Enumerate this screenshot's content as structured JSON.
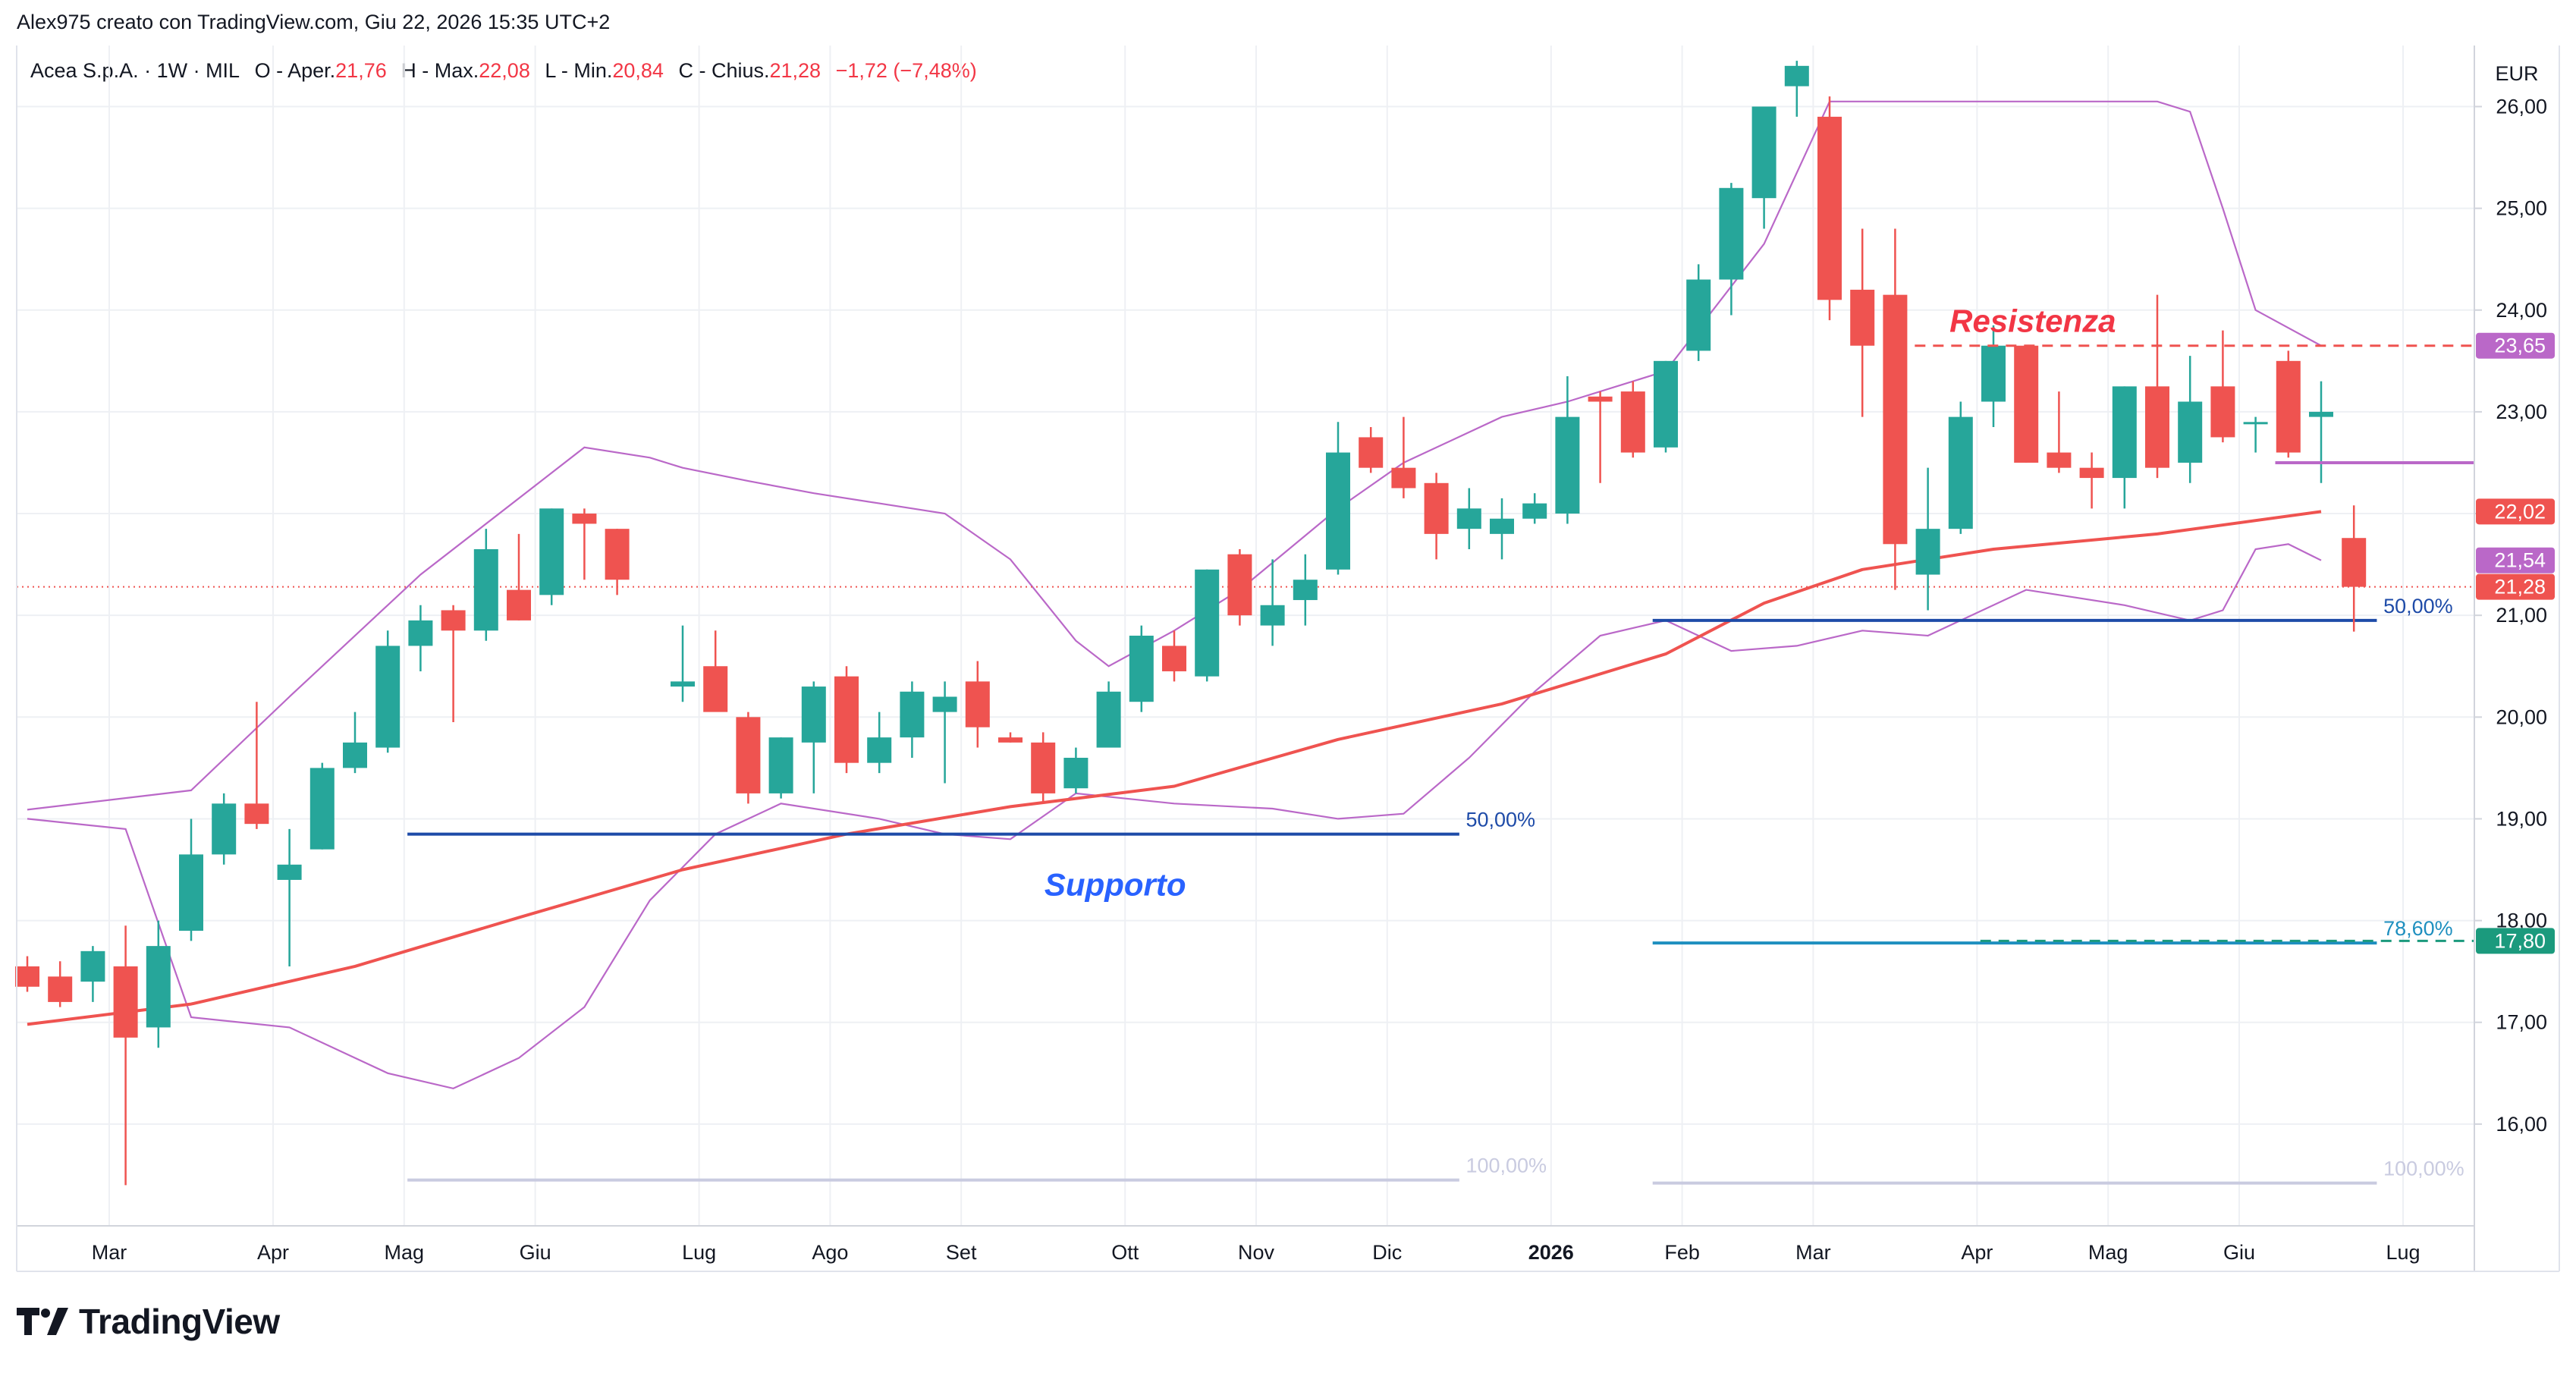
{
  "header": {
    "credit": "Alex975 creato con TradingView.com, Giu 22, 2026 15:35 UTC+2"
  },
  "legend": {
    "symbol": "Acea S.p.A. · 1W · MIL",
    "o_label": "O - Aper.",
    "o_value": "21,76",
    "h_label": "H - Max.",
    "h_value": "22,08",
    "l_label": "L - Min.",
    "l_value": "20,84",
    "c_label": "C - Chius.",
    "c_value": "21,28",
    "change": "−1,72 (−7,48%)"
  },
  "colors": {
    "up": "#26a69a",
    "down": "#ef5350",
    "ma": "#ef5350",
    "bb": "#ba68c8",
    "fib_blue": "#1e4ba8",
    "fib_cyan": "#1e8fbf",
    "fib_grey": "#c9cbe0",
    "note_blue": "#2962ff",
    "note_red": "#f23645",
    "grid": "#eef0f4"
  },
  "branding": {
    "logo_text": "TradingView",
    "logo_icon": "tradingview-logo-icon"
  },
  "chart_data": {
    "type": "candlestick",
    "currency": "EUR",
    "ylim": [
      15,
      26.6
    ],
    "y_ticks": [
      {
        "v": 16,
        "label": "16,00"
      },
      {
        "v": 17,
        "label": "17,00"
      },
      {
        "v": 18,
        "label": "18,00"
      },
      {
        "v": 19,
        "label": "19,00"
      },
      {
        "v": 20,
        "label": "20,00"
      },
      {
        "v": 21,
        "label": "21,00"
      },
      {
        "v": 22,
        "label": "22,00"
      },
      {
        "v": 23,
        "label": "23,00"
      },
      {
        "v": 24,
        "label": "24,00"
      },
      {
        "v": 25,
        "label": "25,00"
      },
      {
        "v": 26,
        "label": "26,00"
      }
    ],
    "x_ticks": [
      {
        "i": 2.5,
        "label": "Mar",
        "bold": false
      },
      {
        "i": 7.5,
        "label": "Apr",
        "bold": false
      },
      {
        "i": 11.5,
        "label": "Mag",
        "bold": false
      },
      {
        "i": 15.5,
        "label": "Giu",
        "bold": false
      },
      {
        "i": 20.5,
        "label": "Lug",
        "bold": false
      },
      {
        "i": 24.5,
        "label": "Ago",
        "bold": false
      },
      {
        "i": 28.5,
        "label": "Set",
        "bold": false
      },
      {
        "i": 33.5,
        "label": "Ott",
        "bold": false
      },
      {
        "i": 37.5,
        "label": "Nov",
        "bold": false
      },
      {
        "i": 41.5,
        "label": "Dic",
        "bold": false
      },
      {
        "i": 46.5,
        "label": "2026",
        "bold": true
      },
      {
        "i": 50.5,
        "label": "Feb",
        "bold": false
      },
      {
        "i": 54.5,
        "label": "Mar",
        "bold": false
      },
      {
        "i": 59.5,
        "label": "Apr",
        "bold": false
      },
      {
        "i": 63.5,
        "label": "Mag",
        "bold": false
      },
      {
        "i": 67.5,
        "label": "Giu",
        "bold": false
      },
      {
        "i": 72.5,
        "label": "Lug",
        "bold": false
      }
    ],
    "candles": [
      {
        "o": 17.55,
        "h": 17.65,
        "l": 17.3,
        "c": 17.35
      },
      {
        "o": 17.45,
        "h": 17.6,
        "l": 17.15,
        "c": 17.2
      },
      {
        "o": 17.4,
        "h": 17.75,
        "l": 17.2,
        "c": 17.7
      },
      {
        "o": 17.55,
        "h": 17.95,
        "l": 15.4,
        "c": 16.85
      },
      {
        "o": 16.95,
        "h": 18.0,
        "l": 16.75,
        "c": 17.75
      },
      {
        "o": 17.9,
        "h": 19.0,
        "l": 17.8,
        "c": 18.65
      },
      {
        "o": 18.65,
        "h": 19.25,
        "l": 18.55,
        "c": 19.15
      },
      {
        "o": 19.15,
        "h": 20.15,
        "l": 18.9,
        "c": 18.95
      },
      {
        "o": 18.4,
        "h": 18.9,
        "l": 17.55,
        "c": 18.55
      },
      {
        "o": 18.7,
        "h": 19.55,
        "l": 18.7,
        "c": 19.5
      },
      {
        "o": 19.5,
        "h": 20.05,
        "l": 19.45,
        "c": 19.75
      },
      {
        "o": 19.7,
        "h": 20.85,
        "l": 19.65,
        "c": 20.7
      },
      {
        "o": 20.7,
        "h": 21.1,
        "l": 20.45,
        "c": 20.95
      },
      {
        "o": 21.05,
        "h": 21.1,
        "l": 19.95,
        "c": 20.85
      },
      {
        "o": 20.85,
        "h": 21.85,
        "l": 20.75,
        "c": 21.65
      },
      {
        "o": 21.25,
        "h": 21.8,
        "l": 20.95,
        "c": 20.95
      },
      {
        "o": 21.2,
        "h": 22.05,
        "l": 21.1,
        "c": 22.05
      },
      {
        "o": 22.0,
        "h": 22.05,
        "l": 21.35,
        "c": 21.9
      },
      {
        "o": 21.85,
        "h": 21.85,
        "l": 21.2,
        "c": 21.35
      },
      {},
      {
        "o": 20.3,
        "h": 20.9,
        "l": 20.15,
        "c": 20.35
      },
      {
        "o": 20.5,
        "h": 20.85,
        "l": 20.1,
        "c": 20.05
      },
      {
        "o": 20.0,
        "h": 20.05,
        "l": 19.15,
        "c": 19.25
      },
      {
        "o": 19.25,
        "h": 19.8,
        "l": 19.2,
        "c": 19.8
      },
      {
        "o": 19.75,
        "h": 20.35,
        "l": 19.25,
        "c": 20.3
      },
      {
        "o": 20.4,
        "h": 20.5,
        "l": 19.45,
        "c": 19.55
      },
      {
        "o": 19.55,
        "h": 20.05,
        "l": 19.45,
        "c": 19.8
      },
      {
        "o": 19.8,
        "h": 20.35,
        "l": 19.6,
        "c": 20.25
      },
      {
        "o": 20.05,
        "h": 20.35,
        "l": 19.35,
        "c": 20.2
      },
      {
        "o": 20.35,
        "h": 20.55,
        "l": 19.7,
        "c": 19.9
      },
      {
        "o": 19.8,
        "h": 19.85,
        "l": 19.75,
        "c": 19.75
      },
      {
        "o": 19.75,
        "h": 19.85,
        "l": 19.15,
        "c": 19.25
      },
      {
        "o": 19.3,
        "h": 19.7,
        "l": 19.25,
        "c": 19.6
      },
      {
        "o": 19.7,
        "h": 20.35,
        "l": 19.7,
        "c": 20.25
      },
      {
        "o": 20.15,
        "h": 20.9,
        "l": 20.05,
        "c": 20.8
      },
      {
        "o": 20.7,
        "h": 20.85,
        "l": 20.35,
        "c": 20.45
      },
      {
        "o": 20.4,
        "h": 21.45,
        "l": 20.35,
        "c": 21.45
      },
      {
        "o": 21.6,
        "h": 21.65,
        "l": 20.9,
        "c": 21.0
      },
      {
        "o": 20.9,
        "h": 21.55,
        "l": 20.7,
        "c": 21.1
      },
      {
        "o": 21.15,
        "h": 21.6,
        "l": 20.9,
        "c": 21.35
      },
      {
        "o": 21.45,
        "h": 22.9,
        "l": 21.4,
        "c": 22.6
      },
      {
        "o": 22.75,
        "h": 22.85,
        "l": 22.4,
        "c": 22.45
      },
      {
        "o": 22.45,
        "h": 22.95,
        "l": 22.15,
        "c": 22.25
      },
      {
        "o": 22.3,
        "h": 22.4,
        "l": 21.55,
        "c": 21.8
      },
      {
        "o": 21.85,
        "h": 22.25,
        "l": 21.65,
        "c": 22.05
      },
      {
        "o": 21.8,
        "h": 22.15,
        "l": 21.55,
        "c": 21.95
      },
      {
        "o": 21.95,
        "h": 22.2,
        "l": 21.9,
        "c": 22.1
      },
      {
        "o": 22.0,
        "h": 23.35,
        "l": 21.9,
        "c": 22.95
      },
      {
        "o": 23.15,
        "h": 23.2,
        "l": 22.3,
        "c": 23.1
      },
      {
        "o": 23.2,
        "h": 23.3,
        "l": 22.55,
        "c": 22.6
      },
      {
        "o": 22.65,
        "h": 23.5,
        "l": 22.6,
        "c": 23.5
      },
      {
        "o": 23.6,
        "h": 24.45,
        "l": 23.5,
        "c": 24.3
      },
      {
        "o": 24.3,
        "h": 25.25,
        "l": 23.95,
        "c": 25.2
      },
      {
        "o": 25.1,
        "h": 26.0,
        "l": 24.8,
        "c": 26.0
      },
      {
        "o": 26.2,
        "h": 26.45,
        "l": 25.9,
        "c": 26.4
      },
      {
        "o": 25.9,
        "h": 26.1,
        "l": 23.9,
        "c": 24.1
      },
      {
        "o": 24.2,
        "h": 24.8,
        "l": 22.95,
        "c": 23.65
      },
      {
        "o": 24.15,
        "h": 24.8,
        "l": 21.25,
        "c": 21.7
      },
      {
        "o": 21.4,
        "h": 22.45,
        "l": 21.05,
        "c": 21.85
      },
      {
        "o": 21.85,
        "h": 23.1,
        "l": 21.8,
        "c": 22.95
      },
      {
        "o": 23.1,
        "h": 23.85,
        "l": 22.85,
        "c": 23.65
      },
      {
        "o": 23.65,
        "h": 23.65,
        "l": 22.5,
        "c": 22.5
      },
      {
        "o": 22.6,
        "h": 23.2,
        "l": 22.4,
        "c": 22.45
      },
      {
        "o": 22.45,
        "h": 22.6,
        "l": 22.05,
        "c": 22.35
      },
      {
        "o": 22.35,
        "h": 23.25,
        "l": 22.05,
        "c": 23.25
      },
      {
        "o": 23.25,
        "h": 24.15,
        "l": 22.35,
        "c": 22.45
      },
      {
        "o": 22.5,
        "h": 23.55,
        "l": 22.3,
        "c": 23.1
      },
      {
        "o": 23.25,
        "h": 23.8,
        "l": 22.7,
        "c": 22.75
      },
      {
        "o": 22.9,
        "h": 22.95,
        "l": 22.6,
        "c": 22.9
      },
      {
        "o": 23.5,
        "h": 23.6,
        "l": 22.55,
        "c": 22.6
      },
      {
        "o": 22.95,
        "h": 23.3,
        "l": 22.3,
        "c": 23.0
      },
      {
        "o": 21.76,
        "h": 22.08,
        "l": 20.84,
        "c": 21.28
      }
    ],
    "ma": [
      [
        0,
        16.98
      ],
      [
        5,
        17.18
      ],
      [
        10,
        17.55
      ],
      [
        15,
        18.03
      ],
      [
        20,
        18.5
      ],
      [
        25,
        18.85
      ],
      [
        30,
        19.12
      ],
      [
        35,
        19.32
      ],
      [
        40,
        19.78
      ],
      [
        45,
        20.13
      ],
      [
        50,
        20.62
      ],
      [
        53,
        21.12
      ],
      [
        56,
        21.45
      ],
      [
        60,
        21.65
      ],
      [
        65,
        21.8
      ],
      [
        70,
        22.02
      ]
    ],
    "bb_upper": [
      [
        0,
        19.09
      ],
      [
        5,
        19.28
      ],
      [
        8,
        20.2
      ],
      [
        12,
        21.4
      ],
      [
        16,
        22.4
      ],
      [
        17,
        22.65
      ],
      [
        19,
        22.55
      ],
      [
        20,
        22.45
      ],
      [
        22,
        22.32
      ],
      [
        24,
        22.2
      ],
      [
        26,
        22.1
      ],
      [
        28,
        22.0
      ],
      [
        30,
        21.55
      ],
      [
        32,
        20.75
      ],
      [
        33,
        20.5
      ],
      [
        35,
        20.85
      ],
      [
        37,
        21.25
      ],
      [
        40,
        22.05
      ],
      [
        42,
        22.5
      ],
      [
        45,
        22.95
      ],
      [
        47,
        23.1
      ],
      [
        50,
        23.4
      ],
      [
        53,
        24.65
      ],
      [
        55,
        26.05
      ],
      [
        60,
        26.05
      ],
      [
        65,
        26.05
      ],
      [
        66,
        25.95
      ],
      [
        67,
        25.0
      ],
      [
        68,
        24.0
      ],
      [
        70,
        23.65
      ]
    ],
    "bb_lower": [
      [
        0,
        19.0
      ],
      [
        3,
        18.9
      ],
      [
        5,
        17.05
      ],
      [
        8,
        16.95
      ],
      [
        11,
        16.5
      ],
      [
        13,
        16.35
      ],
      [
        15,
        16.65
      ],
      [
        17,
        17.15
      ],
      [
        19,
        18.2
      ],
      [
        21,
        18.85
      ],
      [
        23,
        19.15
      ],
      [
        26,
        19.0
      ],
      [
        28,
        18.85
      ],
      [
        30,
        18.8
      ],
      [
        32,
        19.25
      ],
      [
        35,
        19.15
      ],
      [
        38,
        19.1
      ],
      [
        40,
        19.0
      ],
      [
        42,
        19.05
      ],
      [
        44,
        19.6
      ],
      [
        46,
        20.25
      ],
      [
        48,
        20.8
      ],
      [
        50,
        20.95
      ],
      [
        52,
        20.65
      ],
      [
        54,
        20.7
      ],
      [
        56,
        20.85
      ],
      [
        58,
        20.8
      ],
      [
        61,
        21.25
      ],
      [
        64,
        21.1
      ],
      [
        66,
        20.95
      ],
      [
        67,
        21.05
      ],
      [
        68,
        21.65
      ],
      [
        69,
        21.7
      ],
      [
        70,
        21.54
      ]
    ],
    "fib_levels": [
      {
        "i0": 11.6,
        "i1": 43.7,
        "v": 18.85,
        "label": "50,00%",
        "color": "#1e4ba8",
        "lx": 43.9
      },
      {
        "i0": 11.6,
        "i1": 43.7,
        "v": 15.45,
        "label": "100,00%",
        "color": "#c9cbe0",
        "lx": 43.9
      },
      {
        "i0": 49.6,
        "i1": 71.7,
        "v": 20.95,
        "label": "50,00%",
        "color": "#1e4ba8",
        "lx": 71.9
      },
      {
        "i0": 49.6,
        "i1": 71.7,
        "v": 17.78,
        "label": "78,60%",
        "color": "#1e8fbf",
        "lx": 71.9
      },
      {
        "i0": 49.6,
        "i1": 71.7,
        "v": 15.42,
        "label": "100,00%",
        "color": "#c9cbe0",
        "lx": 71.9
      }
    ],
    "resistance": {
      "v": 23.65,
      "i0": 57.6,
      "label": "Resistenza"
    },
    "support": {
      "label": "Supporto",
      "i": 33.2,
      "v": 18.35
    },
    "purple_level": {
      "v": 22.5,
      "i0": 68.6
    },
    "support_dashed": {
      "v": 17.8,
      "i0": 59.6
    },
    "last_close_dotted": 21.28,
    "price_tags": [
      {
        "v": 23.65,
        "label": "23,65",
        "color": "#ba68c8"
      },
      {
        "v": 22.02,
        "label": "22,02",
        "color": "#ef5350"
      },
      {
        "v": 21.54,
        "label": "21,54",
        "color": "#ba68c8"
      },
      {
        "v": 21.28,
        "label": "21,28",
        "color": "#ef5350"
      },
      {
        "v": 17.8,
        "label": "17,80",
        "color": "#1b9a7d"
      }
    ]
  }
}
